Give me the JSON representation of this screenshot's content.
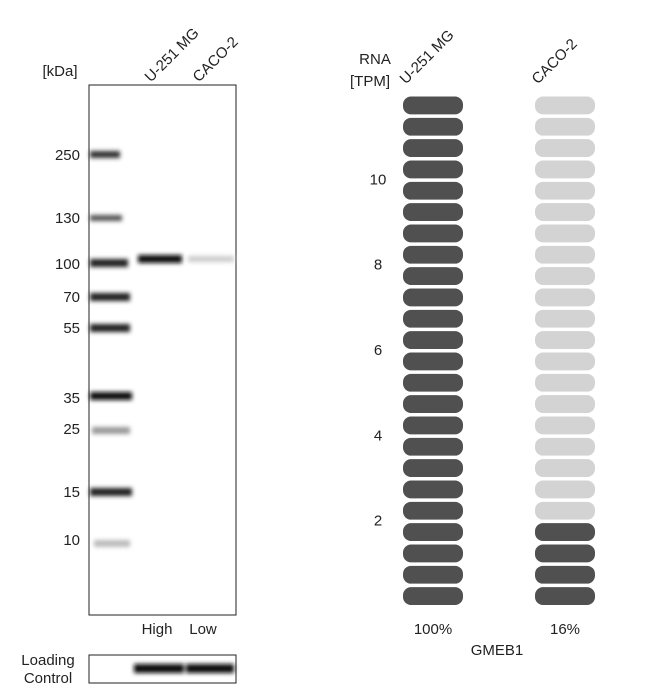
{
  "blot": {
    "unit": "[kDa]",
    "lanes": [
      "U-251 MG",
      "CACO-2"
    ],
    "markers": [
      "250",
      "130",
      "100",
      "70",
      "55",
      "35",
      "25",
      "15",
      "10"
    ],
    "levels": [
      "High",
      "Low"
    ],
    "loading_control": [
      "Loading",
      "Control"
    ]
  },
  "chart_data": {
    "type": "segments",
    "ylabel": [
      "RNA",
      "[TPM]"
    ],
    "categories": [
      "U-251 MG",
      "CACO-2"
    ],
    "values": [
      12,
      2
    ],
    "value_labels": [
      "100%",
      "16%"
    ],
    "xlabel": "GMEB1",
    "ylim": [
      0,
      12
    ],
    "yticks": [
      2,
      4,
      6,
      8,
      10
    ],
    "color": "#505050",
    "empty_color": "#d3d3d3"
  }
}
